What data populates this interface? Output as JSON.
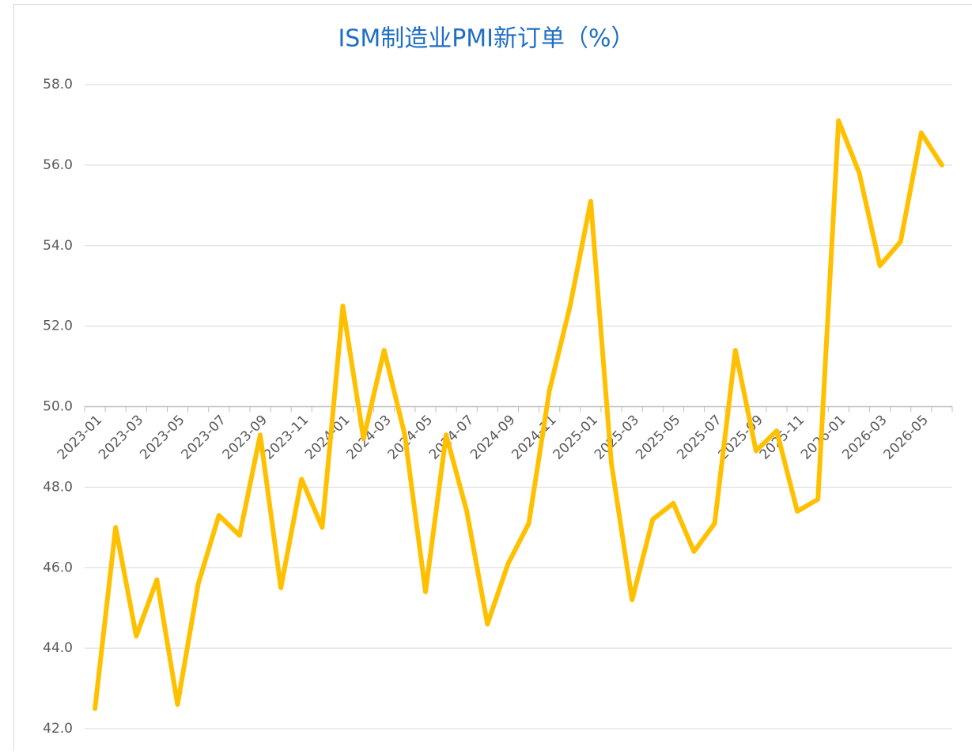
{
  "chart_data": {
    "type": "line",
    "title": "ISM制造业PMI新订单（%）",
    "categories": [
      "2023-01",
      null,
      "2023-03",
      null,
      "2023-05",
      null,
      "2023-07",
      null,
      "2023-09",
      null,
      "2023-11",
      null,
      "2024-01",
      null,
      "2024-03",
      null,
      "2024-05",
      null,
      "2024-07",
      null,
      "2024-09",
      null,
      "2024-11",
      null,
      "2025-01",
      null,
      "2025-03",
      null,
      "2025-05",
      null,
      "2025-07",
      null,
      "2025-09",
      null,
      "2025-11",
      null,
      "2026-01",
      null,
      "2026-03",
      null,
      "2026-05",
      null
    ],
    "values": [
      42.5,
      47.0,
      44.3,
      45.7,
      42.6,
      45.6,
      47.3,
      46.8,
      49.3,
      45.5,
      48.2,
      47.0,
      52.5,
      49.2,
      51.4,
      49.3,
      45.4,
      49.3,
      47.4,
      44.6,
      46.1,
      47.1,
      50.4,
      52.5,
      55.1,
      48.6,
      45.2,
      47.2,
      47.6,
      46.4,
      47.1,
      51.4,
      48.9,
      49.4,
      47.4,
      47.7,
      57.1,
      55.8,
      53.5,
      54.1,
      56.8,
      56.0
    ],
    "color": "#ffc000",
    "ylim": [
      42,
      58
    ],
    "yticks": [
      {
        "value": 42,
        "label": "42.0"
      },
      {
        "value": 44,
        "label": "44.0"
      },
      {
        "value": 46,
        "label": "46.0"
      },
      {
        "value": 48,
        "label": "48.0"
      },
      {
        "value": 50,
        "label": "50.0"
      },
      {
        "value": 52,
        "label": "52.0"
      },
      {
        "value": 54,
        "label": "54.0"
      },
      {
        "value": 56,
        "label": "56.0"
      },
      {
        "value": 58,
        "label": "58.0"
      }
    ],
    "x_axis_crosses": 50,
    "grid": true
  }
}
